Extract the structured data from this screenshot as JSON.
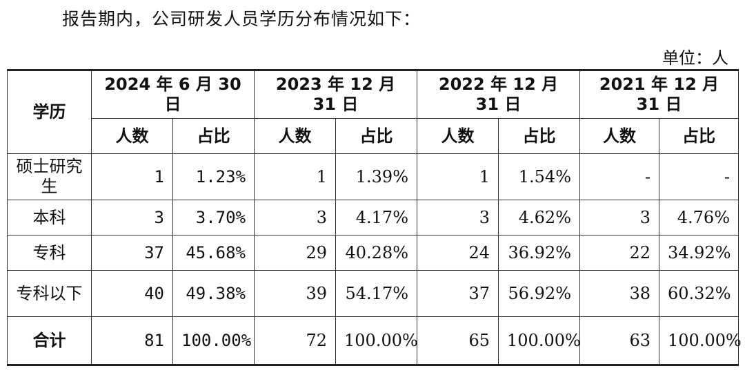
{
  "intro_text": "报告期内，公司研发人员学历分布情况如下：",
  "unit_text": "单位：人",
  "header": {
    "education": "学历",
    "periods": [
      "2024 年 6 月 30 日",
      "2023 年 12 月 31 日",
      "2022 年 12 月 31 日",
      "2021 年 12 月 31 日"
    ],
    "count": "人数",
    "ratio": "占比"
  },
  "rows": [
    {
      "label": "硕士研究生",
      "cells": [
        "1",
        "1.23%",
        "1",
        "1.39%",
        "1",
        "1.54%",
        "-",
        "-"
      ]
    },
    {
      "label": "本科",
      "cells": [
        "3",
        "3.70%",
        "3",
        "4.17%",
        "3",
        "4.62%",
        "3",
        "4.76%"
      ]
    },
    {
      "label": "专科",
      "cells": [
        "37",
        "45.68%",
        "29",
        "40.28%",
        "24",
        "36.92%",
        "22",
        "34.92%"
      ]
    },
    {
      "label": "专科以下",
      "cells": [
        "40",
        "49.38%",
        "39",
        "54.17%",
        "37",
        "56.92%",
        "38",
        "60.32%"
      ]
    },
    {
      "label": "合计",
      "cells": [
        "81",
        "100.00%",
        "72",
        "100.00%",
        "65",
        "100.00%",
        "63",
        "100.00%"
      ]
    }
  ]
}
